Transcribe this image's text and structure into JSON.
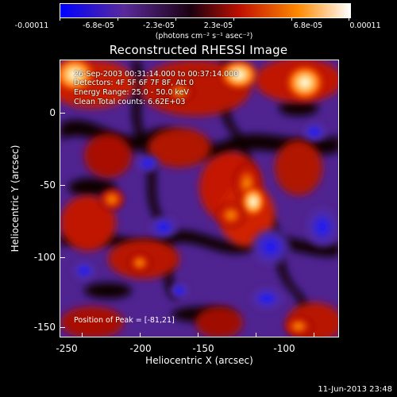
{
  "colorbar": {
    "tick_labels": [
      "-0.00011",
      "-6.8e-05",
      "-2.3e-05",
      "2.3e-05",
      "6.8e-05",
      "0.00011"
    ],
    "units_label": "(photons cm⁻² s⁻¹ asec⁻²)",
    "colors": [
      "#0000ff",
      "#5a2a9a",
      "#1a0010",
      "#c01000",
      "#ff8a00",
      "#ffffff"
    ]
  },
  "title": "Reconstructed RHESSI Image",
  "info": {
    "line1": "26-Sep-2003 00:31:14.000 to 00:37:14.000",
    "line2": "Detectors: 4F 5F 6F 7F 8F, Att 0",
    "line3": "Energy Range: 25.0 - 50.0 keV",
    "line4": "Clean    Total counts: 6.62E+03"
  },
  "peak_label": "Position of Peak = [-81,21]",
  "axes": {
    "xlabel": "Heliocentric X (arcsec)",
    "ylabel": "Heliocentric Y (arcsec)",
    "x_ticks": [
      "-250",
      "-200",
      "-150",
      "-100"
    ],
    "y_ticks": [
      "0",
      "-50",
      "-100",
      "-150"
    ]
  },
  "timestamp": "11-Jun-2013 23:48"
}
